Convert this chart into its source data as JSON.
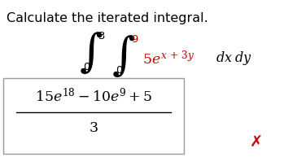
{
  "title_text": "Calculate the iterated integral.",
  "title_color": "#000000",
  "title_fontsize": 11.5,
  "bg_color": "#ffffff",
  "integral_limits_outer_top": "3",
  "integral_limits_inner_top": "9",
  "integral_limits_inner_top_color": "#cc0000",
  "integral_limits_bottom": "0",
  "integrand_color": "#cc0000",
  "dx_dy_color": "#000000",
  "answer_color": "#000000",
  "box_edge_color": "#999999",
  "cross_color": "#cc0000"
}
